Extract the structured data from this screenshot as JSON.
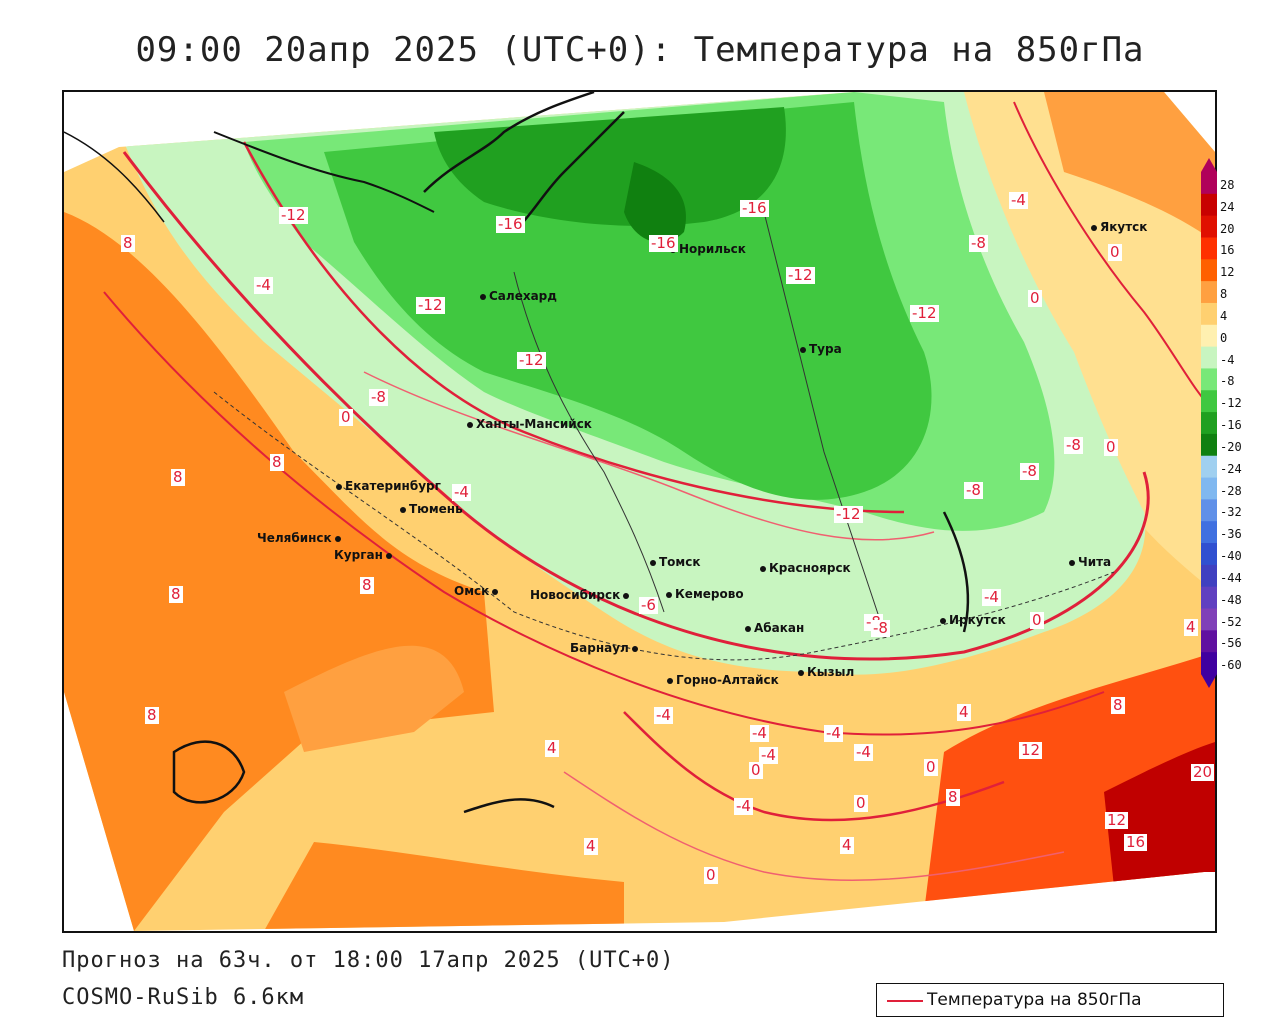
{
  "title": "09:00 20апр 2025 (UTC+0): Температура на 850гПа",
  "footer": {
    "forecast": "Прогноз на 63ч. от 18:00 17апр 2025 (UTC+0)",
    "model": "COSMO-RuSib 6.6км"
  },
  "legend": {
    "label": "Температура на 850гПа",
    "line_color": "#e0203a"
  },
  "cities": [
    {
      "name": "Якутск"
    },
    {
      "name": "Норильск"
    },
    {
      "name": "Салехард"
    },
    {
      "name": "Тура"
    },
    {
      "name": "Ханты-Мансийск"
    },
    {
      "name": "Екатеринбург"
    },
    {
      "name": "Тюмень"
    },
    {
      "name": "Челябинск"
    },
    {
      "name": "Курган"
    },
    {
      "name": "Омск"
    },
    {
      "name": "Новосибирск"
    },
    {
      "name": "Томск"
    },
    {
      "name": "Кемерово"
    },
    {
      "name": "Красноярск"
    },
    {
      "name": "Барнаул"
    },
    {
      "name": "Абакан"
    },
    {
      "name": "Горно-Алтайск"
    },
    {
      "name": "Кызыл"
    },
    {
      "name": "Иркутск"
    },
    {
      "name": "Чита"
    }
  ],
  "contour_labels": [
    "-12",
    "-16",
    "-16",
    "-16",
    "-12",
    "-4",
    "-8",
    "-12",
    "-12",
    "-12",
    "-8",
    "0",
    "8",
    "-4",
    "8",
    "-8",
    "-4",
    "0",
    "-12",
    "-8",
    "-8",
    "-4",
    "0",
    "8",
    "-4",
    "8",
    "8",
    "4",
    "8",
    "-4",
    "-4",
    "-4",
    "-4",
    "0",
    "-4",
    "4",
    "8",
    "12",
    "20",
    "12",
    "16",
    "4",
    "0",
    "8",
    "-8",
    "4",
    "0",
    "-4",
    "0",
    "-4",
    "0",
    "0",
    "4",
    "-6",
    "-8",
    "-8"
  ],
  "colorbar": {
    "ticks": [
      "28",
      "24",
      "20",
      "16",
      "12",
      "8",
      "4",
      "0",
      "-4",
      "-8",
      "-12",
      "-16",
      "-20",
      "-24",
      "-28",
      "-32",
      "-36",
      "-40",
      "-44",
      "-48",
      "-52",
      "-56",
      "-60"
    ],
    "colors": [
      "#b0005a",
      "#c80000",
      "#e01000",
      "#ff3000",
      "#ff6000",
      "#ffa040",
      "#ffd070",
      "#fff0b0",
      "#c8f5c0",
      "#78e878",
      "#40c840",
      "#20a020",
      "#108010",
      "#a0d0f0",
      "#80b8f0",
      "#6090e8",
      "#4070e0",
      "#3050d0",
      "#4040c0",
      "#6040c0",
      "#8040b8",
      "#6010a0",
      "#4000a0"
    ]
  }
}
